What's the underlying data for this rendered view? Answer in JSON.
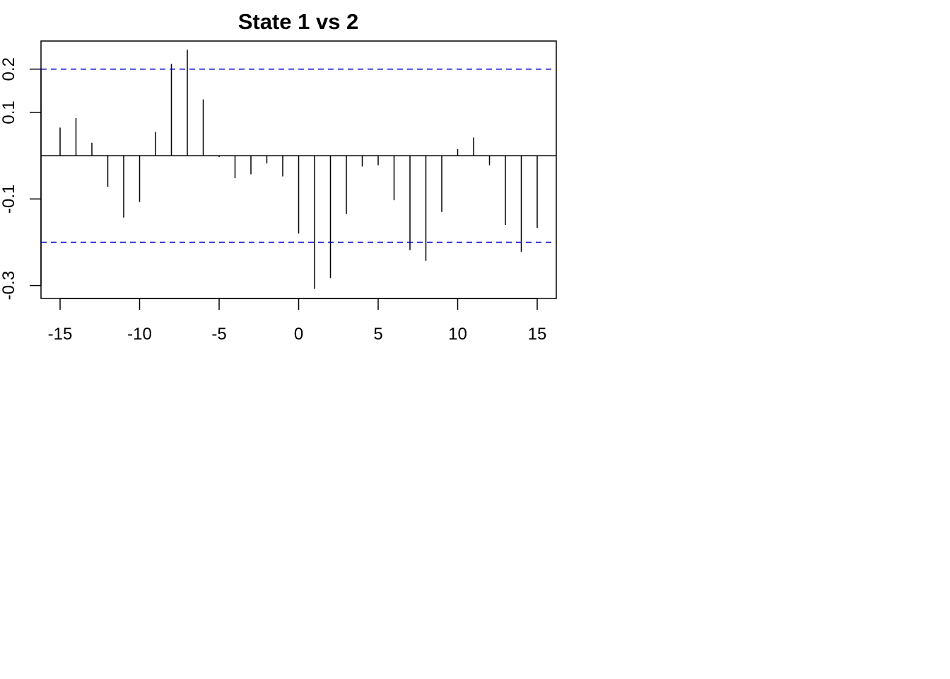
{
  "chart_data": {
    "type": "bar",
    "title": "State 1 vs 2",
    "xlabel": "",
    "ylabel": "",
    "x": [
      -15,
      -14,
      -13,
      -12,
      -11,
      -10,
      -9,
      -8,
      -7,
      -6,
      -5,
      -4,
      -3,
      -2,
      -1,
      0,
      1,
      2,
      3,
      4,
      5,
      6,
      7,
      8,
      9,
      10,
      11,
      12,
      13,
      14,
      15
    ],
    "values": [
      0.065,
      0.087,
      0.03,
      -0.072,
      -0.143,
      -0.107,
      0.055,
      0.212,
      0.245,
      0.13,
      -0.003,
      -0.052,
      -0.043,
      -0.018,
      -0.048,
      -0.18,
      -0.308,
      -0.283,
      -0.135,
      -0.025,
      -0.022,
      -0.103,
      -0.218,
      -0.243,
      -0.13,
      0.015,
      0.042,
      -0.022,
      -0.16,
      -0.222,
      -0.167
    ],
    "xlim": [
      -16.2,
      16.2
    ],
    "ylim": [
      -0.33,
      0.265
    ],
    "x_ticks": [
      -15,
      -10,
      -5,
      0,
      5,
      10,
      15
    ],
    "x_tick_labels": [
      "-15",
      "-10",
      "-5",
      "0",
      "5",
      "10",
      "15"
    ],
    "y_ticks": [
      -0.3,
      -0.1,
      0.1,
      0.2
    ],
    "y_tick_labels": [
      "-0.3",
      "-0.1",
      "0.1",
      "0.2"
    ],
    "confidence_bounds": [
      0.2,
      -0.2
    ],
    "bound_color": "#0000cc",
    "bar_color": "#000000",
    "grid": false,
    "legend": "none"
  }
}
